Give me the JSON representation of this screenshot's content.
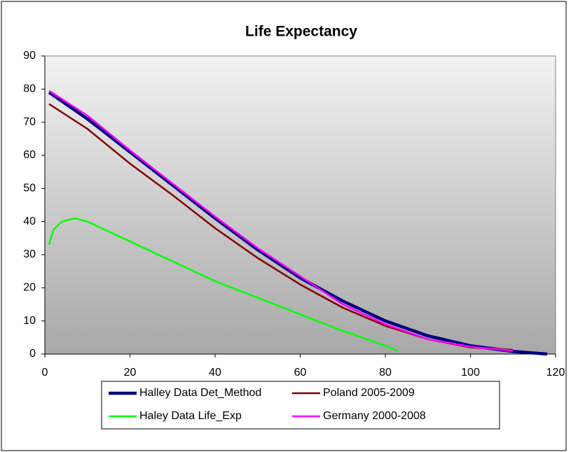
{
  "chart_data": {
    "type": "line",
    "title": "Life Expectancy",
    "xlim": [
      0,
      120
    ],
    "xticks": [
      0,
      20,
      40,
      60,
      80,
      100,
      120
    ],
    "ylim": [
      0,
      90
    ],
    "yticks": [
      0,
      10,
      20,
      30,
      40,
      50,
      60,
      70,
      80,
      90
    ],
    "legend": "bottom",
    "series": [
      {
        "name": "Halley Data Det_Method",
        "color": "#000080",
        "x": [
          1,
          10,
          20,
          30,
          40,
          50,
          60,
          70,
          80,
          90,
          100,
          110,
          118
        ],
        "values": [
          79,
          71,
          61,
          51,
          41,
          31.5,
          23,
          16,
          10,
          5.5,
          2.5,
          0.8,
          0
        ]
      },
      {
        "name": "Poland 2005-2009",
        "color": "#800000",
        "x": [
          1,
          10,
          20,
          30,
          40,
          50,
          60,
          70,
          80,
          90,
          100,
          110
        ],
        "values": [
          75.5,
          68,
          57.5,
          48,
          38,
          29,
          21,
          14,
          8.5,
          4.5,
          2,
          1.3
        ]
      },
      {
        "name": "Haley Data Life_Exp",
        "color": "#00ff00",
        "x": [
          1,
          2,
          4,
          7,
          10,
          20,
          30,
          40,
          50,
          60,
          70,
          80,
          83
        ],
        "values": [
          33,
          37.5,
          40,
          41,
          40,
          34,
          28,
          22,
          17,
          12,
          7,
          2.5,
          1
        ]
      },
      {
        "name": "Germany 2000-2008",
        "color": "#ff00ff",
        "x": [
          1,
          10,
          20,
          30,
          40,
          50,
          60,
          70,
          80,
          90,
          100,
          110
        ],
        "values": [
          79.5,
          72,
          61.5,
          51.5,
          41.5,
          32,
          23.5,
          15,
          9,
          4.5,
          2.2,
          1
        ]
      }
    ]
  }
}
